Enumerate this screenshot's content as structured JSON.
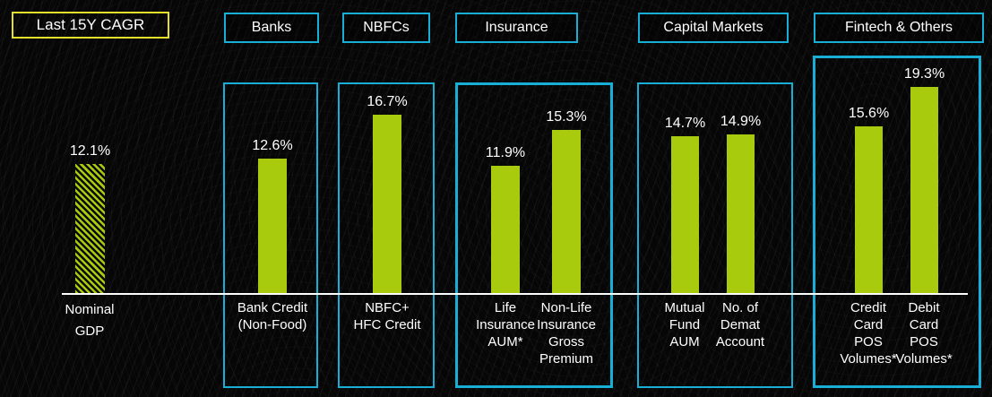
{
  "sections": [
    {
      "label": "Banks"
    },
    {
      "label": "NBFCs"
    },
    {
      "label": "Insurance"
    },
    {
      "label": "Capital Markets"
    },
    {
      "label": "Fintech & Others"
    }
  ],
  "chart_data": {
    "type": "bar",
    "title": "Last 15Y CAGR",
    "unit": "%",
    "ylim": [
      0,
      20
    ],
    "grid": false,
    "legend": false,
    "categories": [
      "Nominal GDP",
      "Bank Credit (Non-Food)",
      "NBFC+ HFC Credit",
      "Life Insurance AUM*",
      "Non-Life Insurance Gross Premium",
      "Mutual Fund AUM",
      "No. of Demat Account",
      "Credit Card POS Volumes*",
      "Debit Card POS Volumes*"
    ],
    "values": [
      12.1,
      12.6,
      16.7,
      11.9,
      15.3,
      14.7,
      14.9,
      15.6,
      19.3
    ],
    "bars": [
      {
        "group": "",
        "axis_label": "Nominal\nGDP",
        "value": 12.1,
        "value_label": "12.1%",
        "style": "hatched"
      },
      {
        "group": "Banks",
        "axis_label": "Bank Credit\n(Non-Food)",
        "value": 12.6,
        "value_label": "12.6%",
        "style": "solid"
      },
      {
        "group": "NBFCs",
        "axis_label": "NBFC+\nHFC Credit",
        "value": 16.7,
        "value_label": "16.7%",
        "style": "solid"
      },
      {
        "group": "Insurance",
        "axis_label": "Life\nInsurance\nAUM*",
        "value": 11.9,
        "value_label": "11.9%",
        "style": "solid"
      },
      {
        "group": "Insurance",
        "axis_label": "Non-Life\nInsurance\nGross\nPremium",
        "value": 15.3,
        "value_label": "15.3%",
        "style": "solid"
      },
      {
        "group": "Capital Markets",
        "axis_label": "Mutual\nFund\nAUM",
        "value": 14.7,
        "value_label": "14.7%",
        "style": "solid"
      },
      {
        "group": "Capital Markets",
        "axis_label": "No. of\nDemat\nAccount",
        "value": 14.9,
        "value_label": "14.9%",
        "style": "solid"
      },
      {
        "group": "Fintech & Others",
        "axis_label": "Credit\nCard\nPOS\nVolumes*",
        "value": 15.6,
        "value_label": "15.6%",
        "style": "solid"
      },
      {
        "group": "Fintech & Others",
        "axis_label": "Debit\nCard\nPOS\nVolumes*",
        "value": 19.3,
        "value_label": "19.3%",
        "style": "solid"
      }
    ]
  },
  "colors": {
    "bar_green": "#a9cb0d",
    "box_cyan": "#18afd6",
    "cagr_yellow": "#e3e02c",
    "text_white": "#ffffff",
    "background": "#060606"
  }
}
